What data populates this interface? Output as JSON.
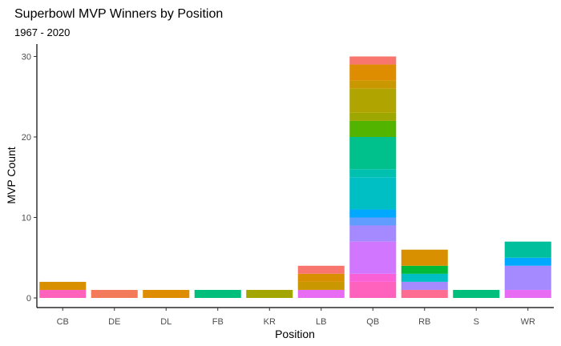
{
  "chart_data": {
    "type": "bar",
    "stacked": true,
    "title": "Superbowl MVP Winners by Position",
    "subtitle": "1967 - 2020",
    "xlabel": "Position",
    "ylabel": "MVP Count",
    "ylim": [
      0,
      31
    ],
    "yticks": [
      "0",
      "10",
      "20",
      "30"
    ],
    "grid": false,
    "legend": "none",
    "categories": [
      "CB",
      "DE",
      "DL",
      "FB",
      "KR",
      "LB",
      "QB",
      "RB",
      "S",
      "WR"
    ],
    "totals": [
      2,
      1,
      1,
      1,
      1,
      4,
      30,
      6,
      1,
      7
    ],
    "segments": [
      [
        {
          "value": 1,
          "color": "#FF62BC"
        },
        {
          "value": 1,
          "color": "#D89000"
        }
      ],
      [
        {
          "value": 1,
          "color": "#F37B59"
        }
      ],
      [
        {
          "value": 1,
          "color": "#DE8C00"
        }
      ],
      [
        {
          "value": 1,
          "color": "#00BF7D"
        }
      ],
      [
        {
          "value": 1,
          "color": "#A3A500"
        }
      ],
      [
        {
          "value": 1,
          "color": "#E76BF3"
        },
        {
          "value": 1,
          "color": "#C99800"
        },
        {
          "value": 1,
          "color": "#D89000"
        },
        {
          "value": 1,
          "color": "#F8766D"
        }
      ],
      [
        {
          "value": 2,
          "color": "#FF62BC"
        },
        {
          "value": 1,
          "color": "#FB61D7"
        },
        {
          "value": 4,
          "color": "#D177FF"
        },
        {
          "value": 2,
          "color": "#A58AFF"
        },
        {
          "value": 1,
          "color": "#619CFF"
        },
        {
          "value": 1,
          "color": "#00A9FF"
        },
        {
          "value": 4,
          "color": "#00BFC4"
        },
        {
          "value": 1,
          "color": "#00C0B0"
        },
        {
          "value": 4,
          "color": "#00C08B"
        },
        {
          "value": 2,
          "color": "#53B400"
        },
        {
          "value": 1,
          "color": "#9DA700"
        },
        {
          "value": 3,
          "color": "#B0A400"
        },
        {
          "value": 1,
          "color": "#C99800"
        },
        {
          "value": 2,
          "color": "#DE8C00"
        },
        {
          "value": 1,
          "color": "#F8766D"
        }
      ],
      [
        {
          "value": 1,
          "color": "#FF6C91"
        },
        {
          "value": 1,
          "color": "#A58AFF"
        },
        {
          "value": 1,
          "color": "#00BFC4"
        },
        {
          "value": 1,
          "color": "#00BA38"
        },
        {
          "value": 2,
          "color": "#D89000"
        }
      ],
      [
        {
          "value": 1,
          "color": "#00BF7D"
        }
      ],
      [
        {
          "value": 1,
          "color": "#E76BF3"
        },
        {
          "value": 3,
          "color": "#A58AFF"
        },
        {
          "value": 1,
          "color": "#00A9FF"
        },
        {
          "value": 2,
          "color": "#00BF9C"
        }
      ]
    ]
  }
}
